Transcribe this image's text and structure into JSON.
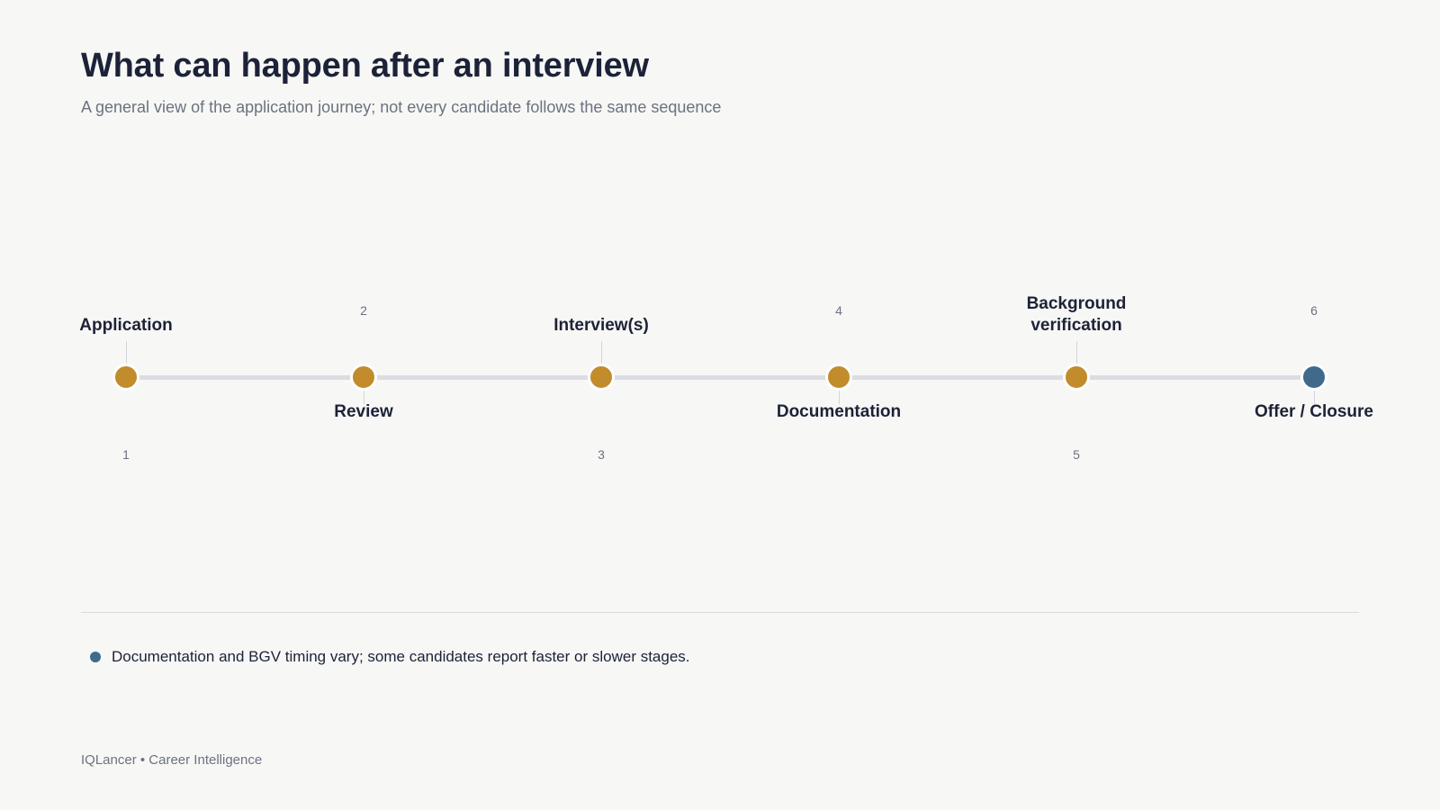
{
  "header": {
    "title": "What can happen after an interview",
    "subtitle": "A general view of the application journey; not every candidate follows the same sequence"
  },
  "colors": {
    "stage": "#c28b2c",
    "final": "#3f6a8c",
    "track": "#dcdde2"
  },
  "stages": [
    {
      "number": "1",
      "label": "Application",
      "final": false
    },
    {
      "number": "2",
      "label": "Review",
      "final": false
    },
    {
      "number": "3",
      "label": "Interview(s)",
      "final": false
    },
    {
      "number": "4",
      "label": "Documentation",
      "final": false
    },
    {
      "number": "5",
      "label": "Background verification",
      "final": false
    },
    {
      "number": "6",
      "label": "Offer / Closure",
      "final": true
    }
  ],
  "note": {
    "text": "Documentation and BGV timing vary; some candidates report faster or slower stages."
  },
  "footer": {
    "text": "IQLancer • Career Intelligence"
  }
}
